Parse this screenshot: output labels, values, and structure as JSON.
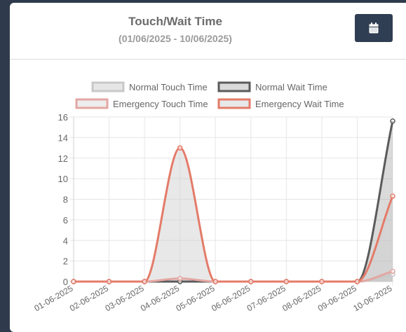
{
  "header": {
    "title": "Touch/Wait Time",
    "date_range": "(01/06/2025 - 10/06/2025)",
    "calendar_icon": "calendar-icon"
  },
  "chart_data": {
    "type": "line",
    "categories": [
      "01-06-2025",
      "02-06-2025",
      "03-06-2025",
      "04-06-2025",
      "05-06-2025",
      "06-06-2025",
      "07-06-2025",
      "08-06-2025",
      "09-06-2025",
      "10-06-2025"
    ],
    "series": [
      {
        "name": "Normal Touch Time",
        "values": [
          0,
          0,
          0,
          0,
          0,
          0,
          0,
          0,
          0,
          0.7
        ],
        "color": "#c8c8c8",
        "fill": "rgba(200,200,200,0.45)"
      },
      {
        "name": "Normal Wait Time",
        "values": [
          0,
          0,
          0,
          0,
          0,
          0,
          0,
          0,
          0,
          15.6
        ],
        "color": "#5b5b5b",
        "fill": "rgba(150,150,150,0.35)"
      },
      {
        "name": "Emergency Touch Time",
        "values": [
          0,
          0,
          0,
          0.3,
          0,
          0,
          0,
          0,
          0,
          1.0
        ],
        "color": "#e3a7a3",
        "fill": "rgba(210,210,210,0.4)"
      },
      {
        "name": "Emergency Wait Time",
        "values": [
          0,
          0,
          0,
          13,
          0,
          0,
          0,
          0,
          0,
          8.3
        ],
        "color": "#e47b69",
        "fill": "rgba(205,205,205,0.45)"
      }
    ],
    "y_ticks": [
      "0",
      "2",
      "4",
      "6",
      "8",
      "10",
      "12",
      "14",
      "16"
    ],
    "ylim": [
      0,
      16
    ],
    "grid": true,
    "legend_position": "top"
  }
}
